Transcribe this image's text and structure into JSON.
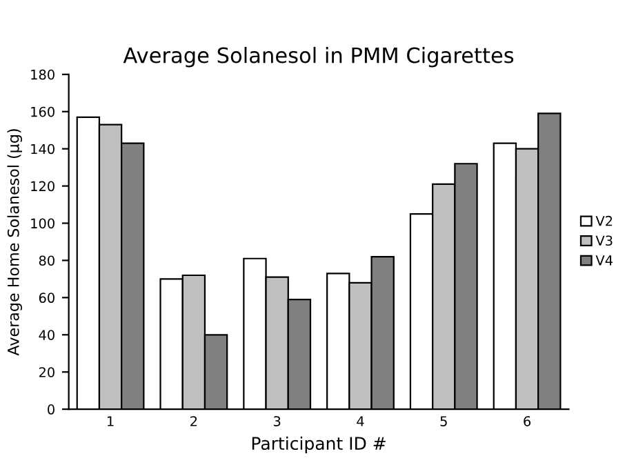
{
  "chart_data": {
    "type": "bar",
    "title": "Average Solanesol in PMM Cigarettes",
    "xlabel": "Participant ID #",
    "ylabel": "Average Home Solanesol (µg)",
    "categories": [
      "1",
      "2",
      "3",
      "4",
      "5",
      "6"
    ],
    "series": [
      {
        "name": "V2",
        "color": "#ffffff",
        "values": [
          157,
          70,
          81,
          73,
          105,
          143
        ]
      },
      {
        "name": "V3",
        "color": "#bfbfbf",
        "values": [
          153,
          72,
          71,
          68,
          121,
          140
        ]
      },
      {
        "name": "V4",
        "color": "#808080",
        "values": [
          143,
          40,
          59,
          82,
          132,
          159
        ]
      }
    ],
    "ylim": [
      0,
      180
    ],
    "yticks": [
      0,
      20,
      40,
      60,
      80,
      100,
      120,
      140,
      160,
      180
    ],
    "grid": false,
    "legend": "right"
  }
}
